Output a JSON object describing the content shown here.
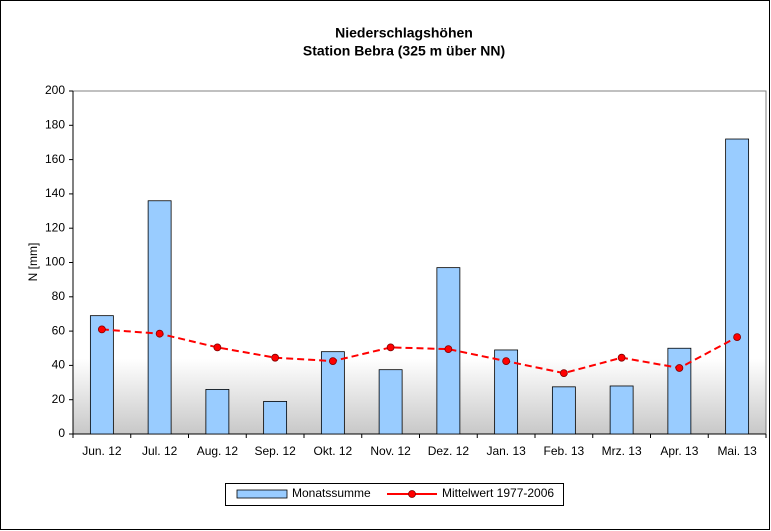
{
  "chart_data": {
    "type": "bar",
    "title": "Niederschlagshöhen",
    "subtitle": "Station Bebra (325 m über NN)",
    "y_label": "N [mm]",
    "categories": [
      "Jun. 12",
      "Jul. 12",
      "Aug. 12",
      "Sep. 12",
      "Okt. 12",
      "Nov. 12",
      "Dez. 12",
      "Jan. 13",
      "Feb. 13",
      "Mrz. 13",
      "Apr. 13",
      "Mai. 13"
    ],
    "series": [
      {
        "name": "Monatssumme",
        "type": "bar",
        "color": "#99ccff",
        "values": [
          69,
          136,
          26,
          19,
          48,
          37.5,
          97,
          49,
          27.5,
          28,
          50,
          172
        ]
      },
      {
        "name": "Mittelwert 1977-2006",
        "type": "line",
        "color": "#ff0000",
        "values": [
          61,
          58.5,
          50.5,
          44.5,
          42.5,
          50.5,
          49.5,
          42.5,
          35.5,
          44.5,
          38.5,
          56.5
        ]
      }
    ],
    "ylim": [
      0,
      200
    ],
    "yticks": [
      0,
      20,
      40,
      60,
      80,
      100,
      120,
      140,
      160,
      180,
      200
    ],
    "grid": false,
    "legend": "bottom"
  }
}
